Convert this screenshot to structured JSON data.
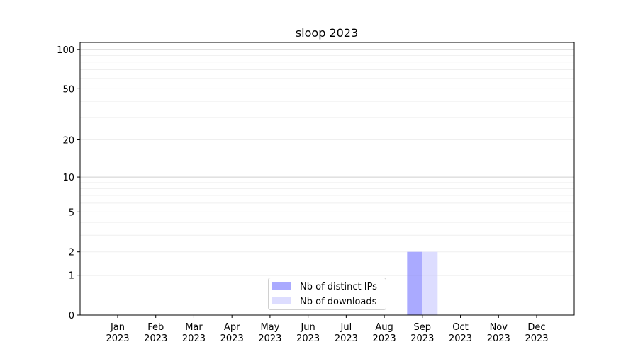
{
  "chart_data": {
    "type": "bar",
    "title": "sloop 2023",
    "xlabel": "",
    "ylabel": "",
    "y_scale": "log(1+y)",
    "ylim": [
      0,
      113
    ],
    "grid": true,
    "legend_position": "lower-center",
    "categories": [
      "Jan\n2023",
      "Feb\n2023",
      "Mar\n2023",
      "Apr\n2023",
      "May\n2023",
      "Jun\n2023",
      "Jul\n2023",
      "Aug\n2023",
      "Sep\n2023",
      "Oct\n2023",
      "Nov\n2023",
      "Dec\n2023"
    ],
    "y_ticks": [
      0,
      1,
      2,
      5,
      10,
      20,
      50,
      100
    ],
    "series": [
      {
        "name": "Nb of distinct IPs",
        "color": "#aaaaff",
        "values": [
          0,
          0,
          0,
          0,
          0,
          0,
          0,
          0,
          2,
          0,
          0,
          0
        ]
      },
      {
        "name": "Nb of downloads",
        "color": "#ddddff",
        "values": [
          0,
          0,
          0,
          0,
          0,
          0,
          0,
          0,
          2,
          0,
          0,
          0
        ]
      }
    ]
  }
}
